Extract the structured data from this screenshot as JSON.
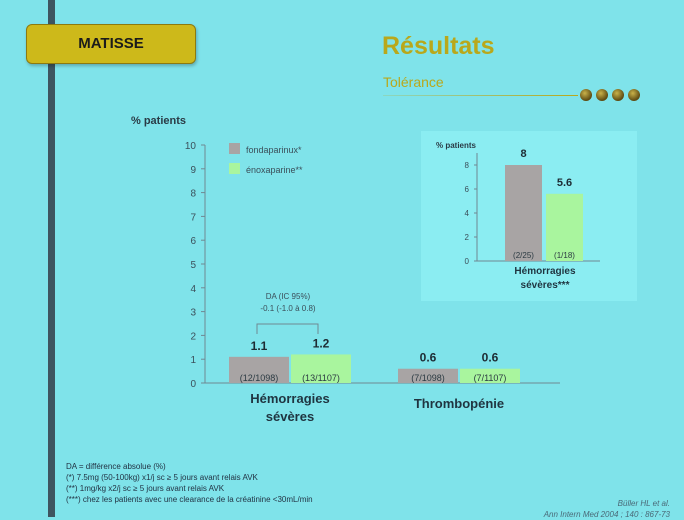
{
  "header": {
    "badge": "MATISSE",
    "title": "Résultats",
    "subtitle": "Tolérance"
  },
  "chart_data": [
    {
      "type": "bar",
      "ylabel": "% patients",
      "ylim": [
        0,
        10
      ],
      "yticks": [
        0,
        1,
        2,
        3,
        4,
        5,
        6,
        7,
        8,
        9,
        10
      ],
      "categories": [
        "Hémorragies sévères",
        "Thrombopénie"
      ],
      "series": [
        {
          "name": "fondaparinux*",
          "color": "#a8a4a4",
          "values": [
            1.1,
            0.6
          ],
          "value_labels": [
            "1.1",
            "0.6"
          ],
          "counts": [
            "(12/1098)",
            "(7/1098)"
          ]
        },
        {
          "name": "énoxaparine**",
          "color": "#a9f59e",
          "values": [
            1.2,
            0.6
          ],
          "value_labels": [
            "1.2",
            "0.6"
          ],
          "counts": [
            "(13/1107)",
            "(7/1107)"
          ]
        }
      ],
      "legend": "top-left",
      "annotation": {
        "line1": "DA (IC 95%)",
        "line2": "-0.1 (-1.0 à 0.8)"
      }
    },
    {
      "type": "bar",
      "ylabel": "% patients",
      "ylim": [
        0,
        8
      ],
      "yticks": [
        0,
        2,
        4,
        6,
        8
      ],
      "category": "Hémorragies sévères***",
      "category_lines": [
        "Hémorragies",
        "sévères***"
      ],
      "bars": [
        {
          "value": 8,
          "label": "8",
          "count": "(2/25)",
          "color": "#a8a4a4"
        },
        {
          "value": 5.6,
          "label": "5.6",
          "count": "(1/18)",
          "color": "#a9f59e"
        }
      ]
    }
  ],
  "footnotes": [
    "DA = différence absolue (%)",
    "(*) 7.5mg (50-100kg) x1/j sc ≥ 5 jours avant relais AVK",
    "(**) 1mg/kg x2/j sc ≥ 5 jours avant relais AVK",
    "(***) chez les patients avec une clearance de la créatinine <30mL/min"
  ],
  "reference": {
    "line1": "Büller HL et al.",
    "line2": "Ann Intern Med 2004 ; 140 : 867-73"
  }
}
